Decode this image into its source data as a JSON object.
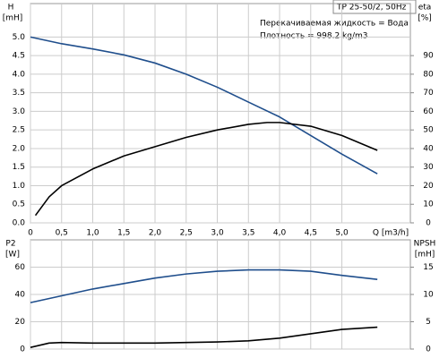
{
  "chart_data": [
    {
      "type": "line",
      "title": "TP 25-50/2, 50Hz",
      "annotations": [
        "Перекачиваемая жидкость = Вода",
        "Плотность = 998.2 kg/m3"
      ],
      "ylabel": "H",
      "yunit": "[mH]",
      "y2label": "eta",
      "y2unit": "[%]",
      "xlabel": "Q [m3/h]",
      "xlim": [
        0,
        6.1
      ],
      "xticks": [
        0,
        {
          "value": 0.5,
          "label": "0,5"
        },
        {
          "value": 1.0,
          "label": "1,0"
        },
        {
          "value": 1.5,
          "label": "1,5"
        },
        {
          "value": 2.0,
          "label": "2,0"
        },
        {
          "value": 2.5,
          "label": "2,5"
        },
        {
          "value": 3.0,
          "label": "3,0"
        },
        {
          "value": 3.5,
          "label": "3,5"
        },
        {
          "value": 4.0,
          "label": "4,0"
        },
        {
          "value": 4.5,
          "label": "4,5"
        },
        {
          "value": 5.0,
          "label": "5,0"
        }
      ],
      "ylim": [
        0,
        5.9
      ],
      "yticks": [
        {
          "value": 0,
          "label": "0.0"
        },
        {
          "value": 0.5,
          "label": "0.5"
        },
        {
          "value": 1.0,
          "label": "1.0"
        },
        {
          "value": 1.5,
          "label": "1.5"
        },
        {
          "value": 2.0,
          "label": "2.0"
        },
        {
          "value": 2.5,
          "label": "2.5"
        },
        {
          "value": 3.0,
          "label": "3.0"
        },
        {
          "value": 3.5,
          "label": "3.5"
        },
        {
          "value": 4.0,
          "label": "4.0"
        },
        {
          "value": 4.5,
          "label": "4.5"
        },
        {
          "value": 5.0,
          "label": "5.0"
        }
      ],
      "y2lim": [
        0,
        118
      ],
      "y2ticks": [
        0,
        10,
        20,
        30,
        40,
        50,
        60,
        70,
        80,
        90
      ],
      "grid": true,
      "series": [
        {
          "color": "#1f4e8c",
          "x": [
            0,
            0.5,
            1.0,
            1.5,
            2.0,
            2.5,
            3.0,
            3.5,
            4.0,
            4.5,
            5.0,
            5.57
          ],
          "values": [
            5.0,
            4.82,
            4.68,
            4.52,
            4.3,
            4.0,
            3.65,
            3.25,
            2.85,
            2.35,
            1.85,
            1.32
          ]
        },
        {
          "color": "#000000",
          "axis": "y2",
          "x": [
            0.08,
            0.3,
            0.5,
            1.0,
            1.5,
            2.0,
            2.5,
            3.0,
            3.5,
            3.8,
            4.0,
            4.5,
            5.0,
            5.57
          ],
          "values": [
            4,
            14,
            20,
            29,
            36,
            41,
            46,
            50,
            53,
            54,
            54,
            52,
            47,
            39
          ]
        }
      ]
    },
    {
      "type": "line",
      "ylabel": "P2",
      "yunit": "[W]",
      "y2label": "NPSH",
      "y2unit": "[mH]",
      "xlim": [
        0,
        6.1
      ],
      "xticks": [
        0,
        0.5,
        1.0,
        1.5,
        2.0,
        2.5,
        3.0,
        3.5,
        4.0,
        4.5,
        5.0
      ],
      "ylim": [
        0,
        80
      ],
      "yticks": [
        0,
        20,
        40,
        60
      ],
      "y2lim": [
        0,
        20
      ],
      "y2ticks": [
        0,
        5,
        10,
        15
      ],
      "grid": true,
      "series": [
        {
          "color": "#1f4e8c",
          "x": [
            0,
            0.5,
            1.0,
            1.5,
            2.0,
            2.5,
            3.0,
            3.5,
            4.0,
            4.5,
            5.0,
            5.57
          ],
          "values": [
            34,
            39,
            44,
            48,
            52,
            55,
            57,
            58,
            58,
            57,
            54,
            51
          ]
        },
        {
          "color": "#000000",
          "axis": "y2",
          "x": [
            0,
            0.3,
            0.5,
            1.0,
            2.0,
            3.0,
            3.5,
            4.0,
            4.5,
            5.0,
            5.57
          ],
          "values": [
            0.3,
            1.1,
            1.2,
            1.1,
            1.1,
            1.3,
            1.5,
            2.0,
            2.8,
            3.6,
            4.0
          ]
        }
      ]
    }
  ]
}
